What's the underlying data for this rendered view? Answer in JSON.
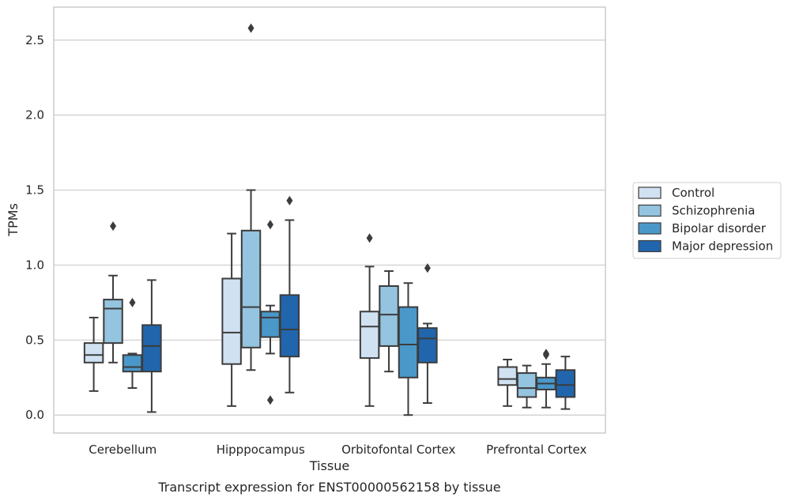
{
  "chart_data": {
    "type": "boxplot",
    "caption": "Transcript expression for ENST00000562158 by tissue",
    "xlabel": "Tissue",
    "ylabel": "TPMs",
    "ylim": [
      -0.12,
      2.72
    ],
    "yticks": [
      "0.0",
      "0.5",
      "1.0",
      "1.5",
      "2.0",
      "2.5"
    ],
    "ytick_values": [
      0,
      0.5,
      1.0,
      1.5,
      2.0,
      2.5
    ],
    "categories": [
      "Cerebellum",
      "Hipppocampus",
      "Orbitofontal Cortex",
      "Prefrontal Cortex"
    ],
    "grid": "horizontal",
    "legend_position": "right",
    "series": [
      {
        "name": "Control",
        "color": "#d0e1f2",
        "boxes": [
          {
            "whislo": 0.16,
            "q1": 0.35,
            "med": 0.4,
            "q3": 0.48,
            "whishi": 0.65,
            "fliers": []
          },
          {
            "whislo": 0.06,
            "q1": 0.34,
            "med": 0.55,
            "q3": 0.91,
            "whishi": 1.21,
            "fliers": []
          },
          {
            "whislo": 0.06,
            "q1": 0.38,
            "med": 0.59,
            "q3": 0.69,
            "whishi": 0.99,
            "fliers": [
              1.18
            ]
          },
          {
            "whislo": 0.06,
            "q1": 0.2,
            "med": 0.24,
            "q3": 0.32,
            "whishi": 0.37,
            "fliers": []
          }
        ]
      },
      {
        "name": "Schizophrenia",
        "color": "#94c4df",
        "boxes": [
          {
            "whislo": 0.35,
            "q1": 0.48,
            "med": 0.71,
            "q3": 0.77,
            "whishi": 0.93,
            "fliers": [
              1.26
            ]
          },
          {
            "whislo": 0.3,
            "q1": 0.45,
            "med": 0.72,
            "q3": 1.23,
            "whishi": 1.5,
            "fliers": [
              2.58
            ]
          },
          {
            "whislo": 0.29,
            "q1": 0.46,
            "med": 0.67,
            "q3": 0.86,
            "whishi": 0.96,
            "fliers": []
          },
          {
            "whislo": 0.05,
            "q1": 0.12,
            "med": 0.18,
            "q3": 0.28,
            "whishi": 0.33,
            "fliers": []
          }
        ]
      },
      {
        "name": "Bipolar disorder",
        "color": "#4a98c9",
        "boxes": [
          {
            "whislo": 0.18,
            "q1": 0.29,
            "med": 0.32,
            "q3": 0.4,
            "whishi": 0.41,
            "fliers": [
              0.75
            ]
          },
          {
            "whislo": 0.41,
            "q1": 0.52,
            "med": 0.65,
            "q3": 0.69,
            "whishi": 0.73,
            "fliers": [
              1.27,
              0.1
            ]
          },
          {
            "whislo": 0.0,
            "q1": 0.25,
            "med": 0.47,
            "q3": 0.72,
            "whishi": 0.88,
            "fliers": []
          },
          {
            "whislo": 0.05,
            "q1": 0.17,
            "med": 0.21,
            "q3": 0.25,
            "whishi": 0.34,
            "fliers": [
              0.4,
              0.41
            ]
          }
        ]
      },
      {
        "name": "Major depression",
        "color": "#2166ac",
        "boxes": [
          {
            "whislo": 0.02,
            "q1": 0.29,
            "med": 0.46,
            "q3": 0.6,
            "whishi": 0.9,
            "fliers": []
          },
          {
            "whislo": 0.15,
            "q1": 0.39,
            "med": 0.57,
            "q3": 0.8,
            "whishi": 1.3,
            "fliers": [
              1.43
            ]
          },
          {
            "whislo": 0.08,
            "q1": 0.35,
            "med": 0.51,
            "q3": 0.58,
            "whishi": 0.61,
            "fliers": [
              0.98
            ]
          },
          {
            "whislo": 0.04,
            "q1": 0.12,
            "med": 0.2,
            "q3": 0.3,
            "whishi": 0.39,
            "fliers": []
          }
        ]
      }
    ]
  }
}
